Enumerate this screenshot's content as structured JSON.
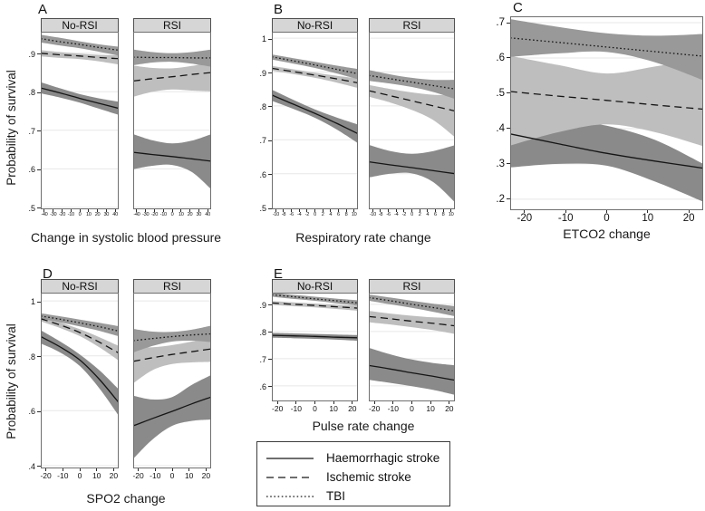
{
  "figure": {
    "y_axis_label": "Probability of survival",
    "panel_letters": [
      "A",
      "B",
      "C",
      "D",
      "E"
    ]
  },
  "colors": {
    "grid": "#e7e7e7",
    "plot_border": "#6f6f6f",
    "header_bg": "#d6d6d6",
    "line": "#151515",
    "legend_line": "#3f3f3f",
    "band_haemorrhagic": "#8a8a8a",
    "band_ischemic": "#bebebe",
    "band_tbi": "#999999"
  },
  "series_styles": {
    "haemorrhagic_stroke": {
      "band": "#8a8a8a",
      "dash": ""
    },
    "ischemic_stroke": {
      "band": "#bebebe",
      "dash": "8,5"
    },
    "tbi": {
      "band": "#999999",
      "dash": "1.6,2.6"
    }
  },
  "legend": {
    "items": [
      {
        "label": "Haemorrhagic stroke",
        "style": "haemorrhagic_stroke"
      },
      {
        "label": "Ischemic stroke",
        "style": "ischemic_stroke"
      },
      {
        "label": "TBI",
        "style": "tbi"
      }
    ]
  },
  "chart_data": [
    {
      "panel": "A",
      "type": "line",
      "xlabel": "Change in systolic blood pressure",
      "x_ticks": [
        -40,
        -30,
        -20,
        -10,
        0,
        10,
        20,
        30,
        40
      ],
      "xlim": [
        -44,
        44
      ],
      "y_ticks": [
        {
          "v": 0.9,
          "label": ".9"
        },
        {
          "v": 0.8,
          "label": ".8"
        },
        {
          "v": 0.7,
          "label": ".7"
        },
        {
          "v": 0.6,
          "label": ".6"
        },
        {
          "v": 0.5,
          "label": ".5"
        }
      ],
      "ylim": [
        0.495,
        0.956
      ],
      "sample_x": [
        -44,
        -22,
        0,
        22,
        44
      ],
      "facets": [
        {
          "title": "No-RSI",
          "series": [
            {
              "name": "haemorrhagic_stroke",
              "line": [
                0.81,
                0.797,
                0.783,
                0.77,
                0.757
              ],
              "ci_high": [
                0.825,
                0.809,
                0.794,
                0.783,
                0.774
              ],
              "ci_low": [
                0.796,
                0.785,
                0.772,
                0.756,
                0.74
              ]
            },
            {
              "name": "ischemic_stroke",
              "line": [
                0.9,
                0.896,
                0.893,
                0.889,
                0.886
              ],
              "ci_high": [
                0.908,
                0.903,
                0.899,
                0.896,
                0.895
              ],
              "ci_low": [
                0.892,
                0.888,
                0.885,
                0.879,
                0.871
              ]
            },
            {
              "name": "tbi",
              "line": [
                0.938,
                0.93,
                0.923,
                0.915,
                0.908
              ],
              "ci_high": [
                0.948,
                0.94,
                0.931,
                0.923,
                0.917
              ],
              "ci_low": [
                0.928,
                0.92,
                0.913,
                0.904,
                0.894
              ]
            }
          ]
        },
        {
          "title": "RSI",
          "series": [
            {
              "name": "haemorrhagic_stroke",
              "line": [
                0.643,
                0.637,
                0.632,
                0.626,
                0.62
              ],
              "ci_high": [
                0.69,
                0.674,
                0.666,
                0.673,
                0.69
              ],
              "ci_low": [
                0.599,
                0.608,
                0.61,
                0.592,
                0.547
              ]
            },
            {
              "name": "ischemic_stroke",
              "line": [
                0.828,
                0.834,
                0.839,
                0.845,
                0.85
              ],
              "ci_high": [
                0.868,
                0.862,
                0.861,
                0.867,
                0.877
              ],
              "ci_low": [
                0.787,
                0.8,
                0.806,
                0.803,
                0.801
              ]
            },
            {
              "name": "tbi",
              "line": [
                0.89,
                0.889,
                0.889,
                0.888,
                0.888
              ],
              "ci_high": [
                0.91,
                0.903,
                0.9,
                0.903,
                0.91
              ],
              "ci_low": [
                0.869,
                0.876,
                0.878,
                0.873,
                0.865
              ]
            }
          ]
        }
      ]
    },
    {
      "panel": "B",
      "type": "line",
      "xlabel": "Respiratory rate change",
      "x_ticks": [
        -10,
        -8,
        -6,
        -4,
        -2,
        0,
        2,
        4,
        6,
        8,
        10
      ],
      "xlim": [
        -11,
        11
      ],
      "y_ticks": [
        {
          "v": 1,
          "label": "1"
        },
        {
          "v": 0.9,
          "label": ".9"
        },
        {
          "v": 0.8,
          "label": ".8"
        },
        {
          "v": 0.7,
          "label": ".7"
        },
        {
          "v": 0.6,
          "label": ".6"
        },
        {
          "v": 0.5,
          "label": ".5"
        }
      ],
      "ylim": [
        0.495,
        1.019
      ],
      "sample_x": [
        -11,
        -5.5,
        0,
        5.5,
        11
      ],
      "facets": [
        {
          "title": "No-RSI",
          "series": [
            {
              "name": "haemorrhagic_stroke",
              "line": [
                0.832,
                0.805,
                0.778,
                0.749,
                0.718
              ],
              "ci_high": [
                0.848,
                0.818,
                0.79,
                0.766,
                0.745
              ],
              "ci_low": [
                0.815,
                0.791,
                0.765,
                0.731,
                0.69
              ]
            },
            {
              "name": "ischemic_stroke",
              "line": [
                0.911,
                0.901,
                0.891,
                0.88,
                0.868
              ],
              "ci_high": [
                0.918,
                0.908,
                0.898,
                0.889,
                0.881
              ],
              "ci_low": [
                0.904,
                0.894,
                0.883,
                0.869,
                0.853
              ]
            },
            {
              "name": "tbi",
              "line": [
                0.945,
                0.933,
                0.921,
                0.908,
                0.895
              ],
              "ci_high": [
                0.952,
                0.941,
                0.93,
                0.919,
                0.909
              ],
              "ci_low": [
                0.937,
                0.925,
                0.912,
                0.896,
                0.879
              ]
            }
          ]
        },
        {
          "title": "RSI",
          "series": [
            {
              "name": "haemorrhagic_stroke",
              "line": [
                0.635,
                0.626,
                0.618,
                0.609,
                0.6
              ],
              "ci_high": [
                0.685,
                0.667,
                0.659,
                0.667,
                0.684
              ],
              "ci_low": [
                0.589,
                0.6,
                0.601,
                0.575,
                0.516
              ]
            },
            {
              "name": "ischemic_stroke",
              "line": [
                0.845,
                0.83,
                0.815,
                0.8,
                0.785
              ],
              "ci_high": [
                0.862,
                0.85,
                0.84,
                0.833,
                0.831
              ],
              "ci_low": [
                0.827,
                0.81,
                0.788,
                0.758,
                0.708
              ]
            },
            {
              "name": "tbi",
              "line": [
                0.89,
                0.88,
                0.87,
                0.86,
                0.85
              ],
              "ci_high": [
                0.906,
                0.893,
                0.883,
                0.877,
                0.877
              ],
              "ci_low": [
                0.874,
                0.866,
                0.856,
                0.841,
                0.821
              ]
            }
          ]
        }
      ]
    },
    {
      "panel": "C",
      "type": "line",
      "xlabel": "ETCO2 change",
      "x_ticks": [
        -20,
        -10,
        0,
        10,
        20
      ],
      "xlim": [
        -23.5,
        23.5
      ],
      "y_ticks": [
        {
          "v": 0.7,
          "label": ".7"
        },
        {
          "v": 0.6,
          "label": ".6"
        },
        {
          "v": 0.5,
          "label": ".5"
        },
        {
          "v": 0.4,
          "label": ".4"
        },
        {
          "v": 0.3,
          "label": ".3"
        },
        {
          "v": 0.2,
          "label": ".2"
        }
      ],
      "ylim": [
        0.169,
        0.718
      ],
      "sample_x": [
        -23.5,
        -11.75,
        0,
        11.75,
        23.5
      ],
      "facets": [
        {
          "title": "",
          "series": [
            {
              "name": "haemorrhagic_stroke",
              "line": [
                0.385,
                0.357,
                0.33,
                0.308,
                0.288
              ],
              "ci_high": [
                0.452,
                0.428,
                0.408,
                0.368,
                0.3
              ],
              "ci_low": [
                0.29,
                0.3,
                0.295,
                0.25,
                0.193
              ]
            },
            {
              "name": "ischemic_stroke",
              "line": [
                0.505,
                0.492,
                0.48,
                0.467,
                0.455
              ],
              "ci_high": [
                0.606,
                0.58,
                0.556,
                0.576,
                0.599
              ],
              "ci_low": [
                0.352,
                0.39,
                0.412,
                0.39,
                0.35
              ]
            },
            {
              "name": "tbi",
              "line": [
                0.657,
                0.644,
                0.631,
                0.618,
                0.605
              ],
              "ci_high": [
                0.71,
                0.688,
                0.67,
                0.663,
                0.668
              ],
              "ci_low": [
                0.603,
                0.613,
                0.617,
                0.588,
                0.537
              ]
            }
          ]
        }
      ]
    },
    {
      "panel": "D",
      "type": "line",
      "xlabel": "SPO2 change",
      "x_ticks": [
        -20,
        -10,
        0,
        10,
        20
      ],
      "xlim": [
        -23,
        23
      ],
      "y_ticks": [
        {
          "v": 1,
          "label": "1"
        },
        {
          "v": 0.8,
          "label": ".8"
        },
        {
          "v": 0.6,
          "label": ".6"
        },
        {
          "v": 0.4,
          "label": ".4"
        }
      ],
      "ylim": [
        0.39,
        1.03
      ],
      "sample_x": [
        -23,
        -11.5,
        0,
        11.5,
        23
      ],
      "facets": [
        {
          "title": "No-RSI",
          "series": [
            {
              "name": "haemorrhagic_stroke",
              "line": [
                0.87,
                0.832,
                0.785,
                0.715,
                0.63
              ],
              "ci_high": [
                0.893,
                0.852,
                0.805,
                0.748,
                0.678
              ],
              "ci_low": [
                0.845,
                0.812,
                0.763,
                0.682,
                0.582
              ]
            },
            {
              "name": "ischemic_stroke",
              "line": [
                0.935,
                0.912,
                0.885,
                0.85,
                0.81
              ],
              "ci_high": [
                0.944,
                0.922,
                0.897,
                0.868,
                0.836
              ],
              "ci_low": [
                0.925,
                0.901,
                0.872,
                0.831,
                0.783
              ]
            },
            {
              "name": "tbi",
              "line": [
                0.945,
                0.933,
                0.92,
                0.906,
                0.89
              ],
              "ci_high": [
                0.955,
                0.944,
                0.932,
                0.92,
                0.908
              ],
              "ci_low": [
                0.935,
                0.922,
                0.907,
                0.891,
                0.871
              ]
            }
          ]
        },
        {
          "title": "RSI",
          "series": [
            {
              "name": "haemorrhagic_stroke",
              "line": [
                0.545,
                0.572,
                0.598,
                0.625,
                0.65
              ],
              "ci_high": [
                0.655,
                0.641,
                0.65,
                0.694,
                0.73
              ],
              "ci_low": [
                0.425,
                0.496,
                0.545,
                0.563,
                0.568
              ]
            },
            {
              "name": "ischemic_stroke",
              "line": [
                0.78,
                0.793,
                0.805,
                0.815,
                0.825
              ],
              "ci_high": [
                0.83,
                0.831,
                0.839,
                0.852,
                0.87
              ],
              "ci_low": [
                0.7,
                0.748,
                0.77,
                0.776,
                0.778
              ]
            },
            {
              "name": "tbi",
              "line": [
                0.855,
                0.863,
                0.87,
                0.876,
                0.88
              ],
              "ci_high": [
                0.898,
                0.888,
                0.887,
                0.895,
                0.91
              ],
              "ci_low": [
                0.812,
                0.836,
                0.852,
                0.855,
                0.85
              ]
            }
          ]
        }
      ]
    },
    {
      "panel": "E",
      "type": "line",
      "xlabel": "Pulse rate change",
      "x_ticks": [
        -20,
        -10,
        0,
        10,
        20
      ],
      "xlim": [
        -23,
        23
      ],
      "y_ticks": [
        {
          "v": 0.9,
          "label": ".9"
        },
        {
          "v": 0.8,
          "label": ".8"
        },
        {
          "v": 0.7,
          "label": ".7"
        },
        {
          "v": 0.6,
          "label": ".6"
        }
      ],
      "ylim": [
        0.543,
        0.943
      ],
      "sample_x": [
        -23,
        -11.5,
        0,
        11.5,
        23
      ],
      "facets": [
        {
          "title": "No-RSI",
          "series": [
            {
              "name": "haemorrhagic_stroke",
              "line": [
                0.786,
                0.784,
                0.782,
                0.779,
                0.777
              ],
              "ci_high": [
                0.795,
                0.793,
                0.791,
                0.789,
                0.787
              ],
              "ci_low": [
                0.777,
                0.775,
                0.773,
                0.77,
                0.766
              ]
            },
            {
              "name": "ischemic_stroke",
              "line": [
                0.905,
                0.9,
                0.896,
                0.891,
                0.886
              ],
              "ci_high": [
                0.912,
                0.907,
                0.903,
                0.898,
                0.895
              ],
              "ci_low": [
                0.898,
                0.893,
                0.889,
                0.883,
                0.876
              ]
            },
            {
              "name": "tbi",
              "line": [
                0.935,
                0.928,
                0.92,
                0.913,
                0.905
              ],
              "ci_high": [
                0.942,
                0.935,
                0.928,
                0.921,
                0.915
              ],
              "ci_low": [
                0.928,
                0.92,
                0.913,
                0.904,
                0.895
              ]
            }
          ]
        },
        {
          "title": "RSI",
          "series": [
            {
              "name": "haemorrhagic_stroke",
              "line": [
                0.675,
                0.662,
                0.648,
                0.635,
                0.621
              ],
              "ci_high": [
                0.74,
                0.716,
                0.697,
                0.684,
                0.676
              ],
              "ci_low": [
                0.622,
                0.611,
                0.599,
                0.585,
                0.567
              ]
            },
            {
              "name": "ischemic_stroke",
              "line": [
                0.855,
                0.847,
                0.838,
                0.83,
                0.821
              ],
              "ci_high": [
                0.876,
                0.866,
                0.858,
                0.852,
                0.849
              ],
              "ci_low": [
                0.834,
                0.826,
                0.816,
                0.805,
                0.791
              ]
            },
            {
              "name": "tbi",
              "line": [
                0.925,
                0.913,
                0.9,
                0.888,
                0.875
              ],
              "ci_high": [
                0.936,
                0.925,
                0.913,
                0.902,
                0.893
              ],
              "ci_low": [
                0.913,
                0.9,
                0.887,
                0.872,
                0.856
              ]
            }
          ]
        }
      ]
    }
  ]
}
